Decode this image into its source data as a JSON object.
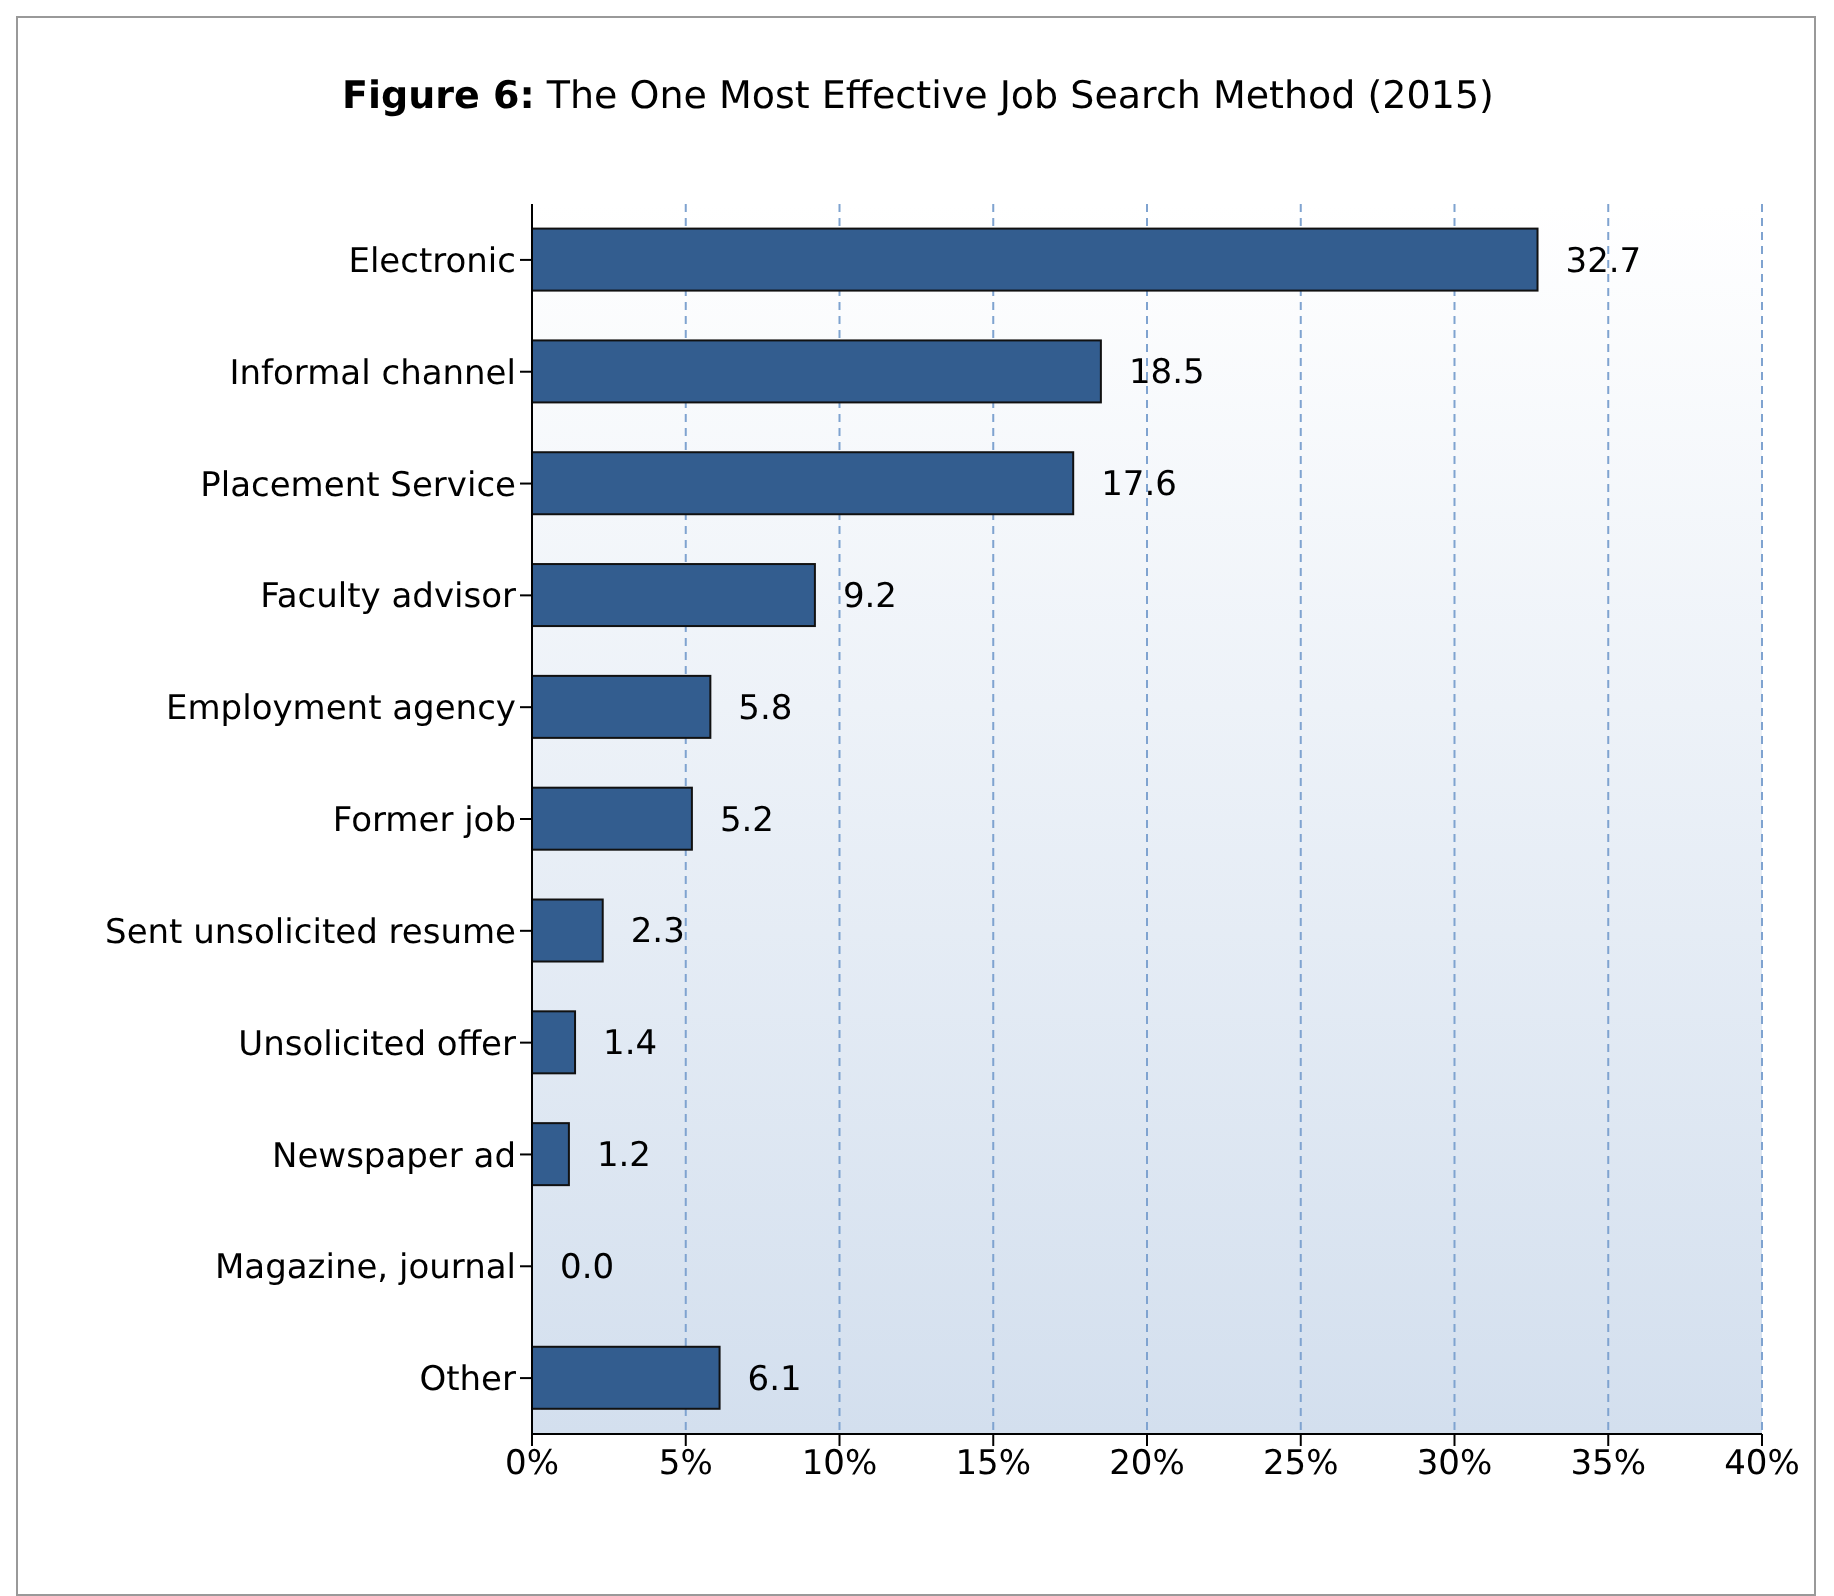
{
  "chart_data": {
    "type": "bar",
    "orientation": "horizontal",
    "title": "Figure 6:  The One Most Effective Job Search Method (2015)",
    "categories": [
      "Electronic",
      "Informal channel",
      "Placement Service",
      "Faculty advisor",
      "Employment agency",
      "Former job",
      "Sent unsolicited resume",
      "Unsolicited offer",
      "Newspaper ad",
      "Magazine, journal",
      "Other"
    ],
    "values": [
      32.7,
      18.5,
      17.6,
      9.2,
      5.8,
      5.2,
      2.3,
      1.4,
      1.2,
      0.0,
      6.1
    ],
    "value_labels": [
      "32.7",
      "18.5",
      "17.6",
      "9.2",
      "5.8",
      "5.2",
      "2.3",
      "1.4",
      "1.2",
      "0.0",
      "6.1"
    ],
    "color": "#335d8f",
    "xlim": [
      0,
      40
    ],
    "xticks": [
      {
        "value": 0,
        "label": "0%"
      },
      {
        "value": 5,
        "label": "5%"
      },
      {
        "value": 10,
        "label": "10%"
      },
      {
        "value": 15,
        "label": "15%"
      },
      {
        "value": 20,
        "label": "20%"
      },
      {
        "value": 25,
        "label": "25%"
      },
      {
        "value": 30,
        "label": "30%"
      },
      {
        "value": 35,
        "label": "35%"
      },
      {
        "value": 40,
        "label": "40%"
      }
    ],
    "grid": "x",
    "line_style": "dashed"
  }
}
